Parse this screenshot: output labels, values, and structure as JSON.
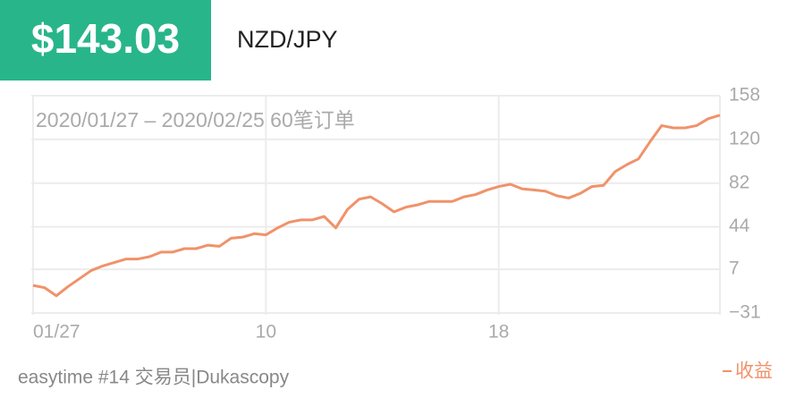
{
  "header": {
    "price": "$143.03",
    "pair": "NZD/JPY"
  },
  "footer": {
    "source": "easytime #14 交易员|Dukascopy"
  },
  "chart_data": {
    "type": "line",
    "subtitle": "2020/01/27 – 2020/02/25 60笔订单",
    "x": [
      0,
      1,
      2,
      3,
      4,
      5,
      6,
      7,
      8,
      9,
      10,
      11,
      12,
      13,
      14,
      15,
      16,
      17,
      18,
      19,
      20,
      21,
      22,
      23,
      24,
      25,
      26,
      27,
      28,
      29,
      30,
      31,
      32,
      33,
      34,
      35,
      36,
      37,
      38,
      39,
      40,
      41,
      42,
      43,
      44,
      45,
      46,
      47,
      48,
      49,
      50,
      51,
      52,
      53,
      54,
      55,
      56,
      57,
      58,
      59
    ],
    "series": [
      {
        "name": "收益",
        "color": "#f0926a",
        "values": [
          -7,
          -9,
          -16,
          -8,
          -1,
          6,
          10,
          13,
          16,
          16,
          18,
          22,
          22,
          25,
          25,
          28,
          27,
          34,
          35,
          38,
          37,
          43,
          48,
          50,
          50,
          53,
          43,
          59,
          68,
          70,
          64,
          57,
          61,
          63,
          66,
          66,
          66,
          70,
          72,
          76,
          79,
          81,
          77,
          76,
          75,
          71,
          69,
          73,
          79,
          80,
          92,
          98,
          103,
          118,
          132,
          130,
          130,
          132,
          138,
          141
        ]
      }
    ],
    "xlim": [
      0,
      59
    ],
    "xticks": [
      {
        "value": 0,
        "label": "01/27"
      },
      {
        "value": 20,
        "label": "10"
      },
      {
        "value": 40,
        "label": "18"
      }
    ],
    "ylim": [
      -31,
      158
    ],
    "yticks": [
      {
        "value": -31,
        "label": "−31"
      },
      7,
      44,
      82,
      120,
      158
    ],
    "grid": true
  }
}
